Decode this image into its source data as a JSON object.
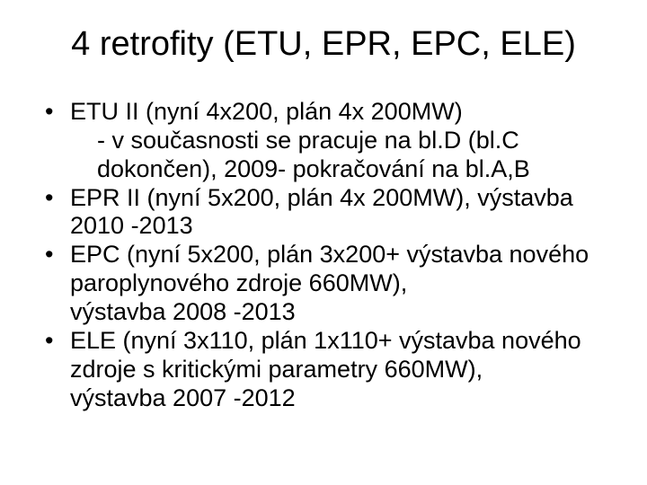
{
  "slide": {
    "title": "4 retrofity (ETU, EPR, EPC, ELE)",
    "title_fontsize": 38,
    "body_fontsize": 27,
    "text_color": "#000000",
    "background_color": "#ffffff",
    "bullets": [
      {
        "line1": "ETU II (nyní 4x200, plán 4x 200MW)",
        "sub1": "- v současnosti se pracuje na bl.D (bl.C dokončen), 2009- pokračování na bl.A,B"
      },
      {
        "line1": "EPR II (nyní 5x200, plán 4x 200MW), výstavba 2010 -2013"
      },
      {
        "line1": "EPC (nyní 5x200, plán 3x200+ výstavba nového paroplynového zdroje 660MW),",
        "line2": "výstavba 2008 -2013"
      },
      {
        "line1": "ELE (nyní 3x110, plán 1x110+ výstavba nového zdroje s kritickými parametry 660MW),",
        "line2": "výstavba 2007 -2012"
      }
    ]
  }
}
